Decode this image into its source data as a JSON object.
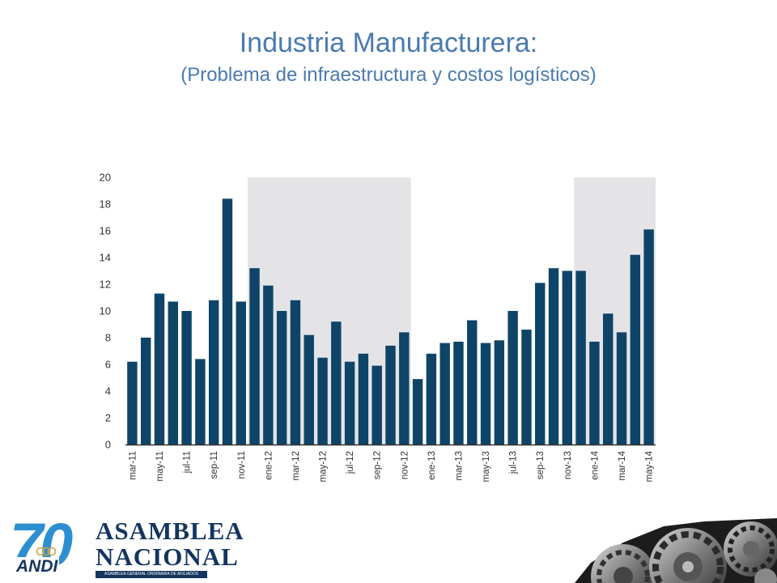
{
  "slide": {
    "title": "Industria Manufacturera:",
    "subtitle": "(Problema de infraestructura y costos logísticos)"
  },
  "logo": {
    "number": "70",
    "org": "ANDI",
    "line1": "ASAMBLEA",
    "line2": "NACIONAL",
    "tagline": "ASAMBLEA GENERAL ORDINARIA DE AFILIADOS"
  },
  "colors": {
    "title": "#4a7ab0",
    "bar": "#0e4468",
    "shade": "#e4e4e6",
    "logo_blue": "#2c8fd0",
    "logo_navy": "#13355e"
  },
  "chart_data": {
    "type": "bar",
    "title": "",
    "xlabel": "",
    "ylabel": "",
    "ylim": [
      0,
      20
    ],
    "yticks": [
      0,
      2,
      4,
      6,
      8,
      10,
      12,
      14,
      16,
      18,
      20
    ],
    "grid": false,
    "legend": "none",
    "categories": [
      "mar-11",
      "abr-11",
      "may-11",
      "jun-11",
      "jul-11",
      "ago-11",
      "sep-11",
      "oct-11",
      "nov-11",
      "dic-11",
      "ene-12",
      "feb-12",
      "mar-12",
      "abr-12",
      "may-12",
      "jun-12",
      "jul-12",
      "ago-12",
      "sep-12",
      "oct-12",
      "nov-12",
      "dic-12",
      "ene-13",
      "feb-13",
      "mar-13",
      "abr-13",
      "may-13",
      "jun-13",
      "jul-13",
      "ago-13",
      "sep-13",
      "oct-13",
      "nov-13",
      "dic-13",
      "ene-14",
      "feb-14",
      "mar-14",
      "abr-14",
      "may-14"
    ],
    "tick_labels": [
      "mar-11",
      "",
      "may-11",
      "",
      "jul-11",
      "",
      "sep-11",
      "",
      "nov-11",
      "",
      "ene-12",
      "",
      "mar-12",
      "",
      "may-12",
      "",
      "jul-12",
      "",
      "sep-12",
      "",
      "nov-12",
      "",
      "ene-13",
      "",
      "mar-13",
      "",
      "may-13",
      "",
      "jul-13",
      "",
      "sep-13",
      "",
      "nov-13",
      "",
      "ene-14",
      "",
      "mar-14",
      "",
      "may-14"
    ],
    "values": [
      6.2,
      8.0,
      11.3,
      10.7,
      10.0,
      6.4,
      10.8,
      18.4,
      10.7,
      13.2,
      11.9,
      10.0,
      10.8,
      8.2,
      6.5,
      9.2,
      6.2,
      6.8,
      5.9,
      7.4,
      8.4,
      4.9,
      6.8,
      7.6,
      7.7,
      9.3,
      7.6,
      7.8,
      10.0,
      8.6,
      12.1,
      13.2,
      13.0,
      13.0,
      7.7,
      9.8,
      8.4,
      14.2,
      16.1
    ],
    "shaded_ranges": [
      [
        "dic-11",
        "nov-12"
      ],
      [
        "dic-13",
        "may-14"
      ]
    ]
  }
}
